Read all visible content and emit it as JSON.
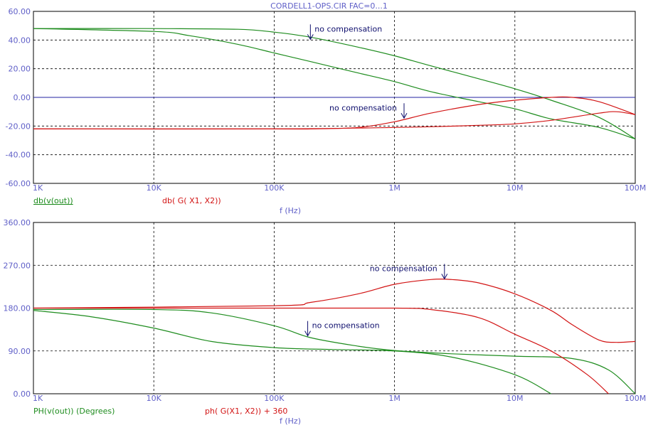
{
  "title": "CORDELL1-OPS.CIR FAC=0...1",
  "colors": {
    "green": "#1e8c1e",
    "red": "#d21414",
    "axis_label": "#6060c8",
    "annotation": "#10106e",
    "zero_line": "#2020a0"
  },
  "chart_data": [
    {
      "type": "line",
      "xscale": "log",
      "xlim": [
        1000,
        100000000
      ],
      "ylim": [
        -60,
        60
      ],
      "xticks": [
        1000,
        10000,
        100000,
        1000000,
        10000000,
        100000000
      ],
      "xtick_labels": [
        "1K",
        "10K",
        "100K",
        "1M",
        "10M",
        "100M"
      ],
      "yticks": [
        -60,
        -40,
        -20,
        0,
        20,
        40,
        60
      ],
      "ytick_labels": [
        "-60.00",
        "-40.00",
        "-20.00",
        "0.00",
        "20.00",
        "40.00",
        "60.00"
      ],
      "xlabel": "f (Hz)",
      "legend": [
        "db(v(out))",
        "db( G( X1,  X2))"
      ],
      "grid": true,
      "series": [
        {
          "name": "db(v(out))",
          "color": "green",
          "x": [
            1000,
            10000,
            20000,
            50000,
            100000,
            200000,
            500000,
            1000000,
            2000000,
            5000000,
            10000000,
            20000000,
            50000000,
            100000000
          ],
          "y": [
            48,
            46,
            43,
            37,
            31,
            25,
            17,
            11,
            4,
            -3,
            -8,
            -15,
            -21,
            -29
          ]
        },
        {
          "name": "db(v(out))",
          "color": "green",
          "x": [
            1000,
            10000,
            50000,
            100000,
            200000,
            500000,
            1000000,
            2000000,
            5000000,
            10000000,
            20000000,
            50000000,
            100000000
          ],
          "y": [
            48,
            48,
            47.5,
            45.5,
            42,
            35,
            29,
            22,
            13,
            6,
            -2,
            -14,
            -29
          ]
        },
        {
          "name": "db( G( X1,  X2))",
          "color": "red",
          "x": [
            1000,
            100000,
            200000,
            500000,
            1000000,
            2000000,
            5000000,
            10000000,
            20000000,
            30000000,
            50000000,
            100000000
          ],
          "y": [
            -22,
            -22,
            -22,
            -21,
            -17,
            -11,
            -5,
            -2,
            0,
            0,
            -3,
            -12
          ]
        },
        {
          "name": "db( G( X1,  X2))",
          "color": "red",
          "x": [
            1000,
            100000,
            1000000,
            2000000,
            5000000,
            10000000,
            20000000,
            50000000,
            70000000,
            100000000
          ],
          "y": [
            -22,
            -22,
            -21,
            -20.5,
            -19.5,
            -18.5,
            -16,
            -11,
            -10,
            -12
          ]
        }
      ],
      "annotations": [
        {
          "text": "no compensation",
          "x": 200000,
          "y": 40
        },
        {
          "text": "no compensation",
          "x": 1200000,
          "y": -15
        }
      ]
    },
    {
      "type": "line",
      "xscale": "log",
      "xlim": [
        1000,
        100000000
      ],
      "ylim": [
        0,
        360
      ],
      "xticks": [
        1000,
        10000,
        100000,
        1000000,
        10000000,
        100000000
      ],
      "xtick_labels": [
        "1K",
        "10K",
        "100K",
        "1M",
        "10M",
        "100M"
      ],
      "yticks": [
        0,
        90,
        180,
        270,
        360
      ],
      "ytick_labels": [
        "0.00",
        "90.00",
        "180.00",
        "270.00",
        "360.00"
      ],
      "xlabel": "f (Hz)",
      "legend": [
        "PH(v(out)) (Degrees)",
        "ph( G(X1, X2)) + 360"
      ],
      "grid": true,
      "series": [
        {
          "name": "PH(v(out)) (Degrees)",
          "color": "green",
          "x": [
            1000,
            3000,
            10000,
            30000,
            100000,
            300000,
            1000000,
            3000000,
            10000000,
            20000000
          ],
          "y": [
            175,
            162,
            138,
            110,
            97,
            93,
            90,
            77,
            40,
            0
          ]
        },
        {
          "name": "PH(v(out)) (Degrees)",
          "color": "green",
          "x": [
            1000,
            10000,
            30000,
            100000,
            200000,
            500000,
            1000000,
            3000000,
            10000000,
            30000000,
            60000000,
            100000000
          ],
          "y": [
            177,
            177,
            170,
            143,
            118,
            100,
            91,
            84,
            79,
            74,
            50,
            0
          ]
        },
        {
          "name": "ph( G(X1, X2)) + 360",
          "color": "red",
          "x": [
            1000,
            100000,
            200000,
            500000,
            1000000,
            2000000,
            3000000,
            5000000,
            10000000,
            20000000,
            30000000,
            50000000,
            70000000,
            100000000
          ],
          "y": [
            180,
            185,
            192,
            210,
            230,
            240,
            240,
            233,
            210,
            175,
            145,
            113,
            108,
            110
          ]
        },
        {
          "name": "ph( G(X1, X2)) + 360",
          "color": "red",
          "x": [
            1000,
            100000,
            1000000,
            2000000,
            5000000,
            10000000,
            20000000,
            40000000,
            60000000
          ],
          "y": [
            180,
            180,
            180,
            177,
            160,
            125,
            90,
            40,
            0
          ]
        }
      ],
      "annotations": [
        {
          "text": "no compensation",
          "x": 2600000,
          "y": 240
        },
        {
          "text": "no compensation",
          "x": 190000,
          "y": 120
        }
      ]
    }
  ]
}
